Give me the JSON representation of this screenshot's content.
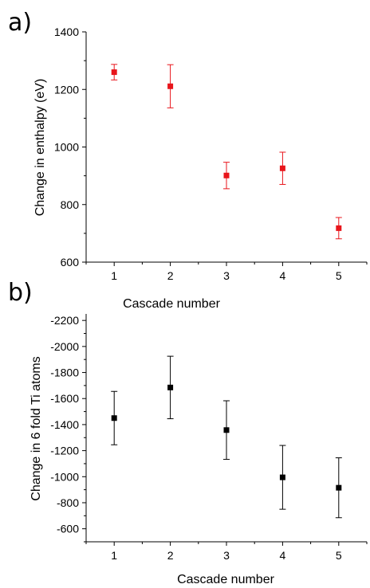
{
  "chart_data": [
    {
      "panel_label": "a)",
      "type": "scatter",
      "error_bars": true,
      "xlabel": "Cascade number",
      "ylabel": "Change in enthalpy (eV)",
      "xlim": [
        0.5,
        5.5
      ],
      "ylim": [
        600,
        1400
      ],
      "x_ticks": [
        1,
        2,
        3,
        4,
        5
      ],
      "y_ticks": [
        600,
        800,
        1000,
        1200,
        1400
      ],
      "y_reversed": false,
      "color": "#e8151b",
      "x": [
        1,
        2,
        3,
        4,
        5
      ],
      "y": [
        1260,
        1211,
        901,
        926,
        718
      ],
      "err": [
        27,
        75,
        46,
        56,
        37
      ]
    },
    {
      "panel_label": "b)",
      "type": "scatter",
      "error_bars": true,
      "xlabel": "Cascade number",
      "ylabel": "Change in 6 fold Ti atoms",
      "xlim": [
        0.5,
        5.5
      ],
      "ylim": [
        -500,
        -2250
      ],
      "x_ticks": [
        1,
        2,
        3,
        4,
        5
      ],
      "y_ticks": [
        -600,
        -800,
        -1000,
        -1200,
        -1400,
        -1600,
        -1800,
        -2000,
        -2200
      ],
      "y_reversed": true,
      "color": "#000000",
      "x": [
        1,
        2,
        3,
        4,
        5
      ],
      "y": [
        -1450,
        -1685,
        -1358,
        -995,
        -915
      ],
      "err": [
        205,
        240,
        225,
        245,
        230
      ]
    }
  ]
}
